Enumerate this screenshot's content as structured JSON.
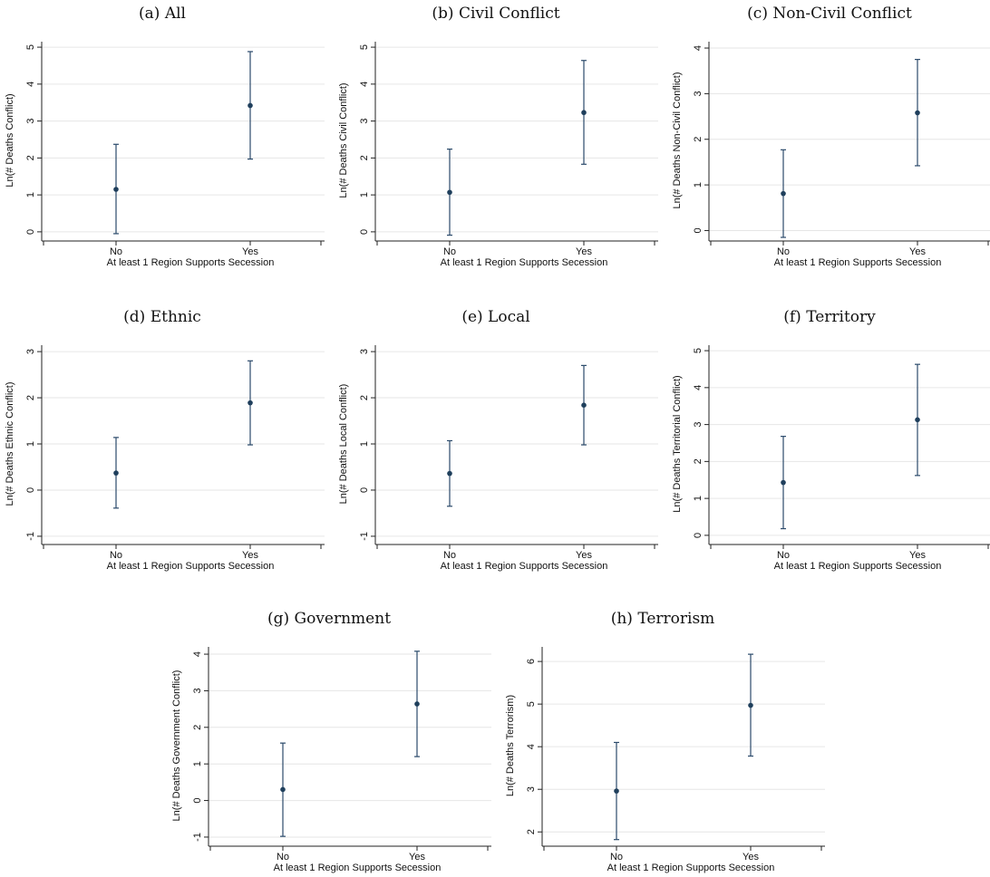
{
  "chart_data": [
    {
      "type": "scatter",
      "title": "(a) All",
      "xlabel": "At least 1 Region Supports Secession",
      "ylabel": "Ln(# Deaths Conflict)",
      "categories": [
        "No",
        "Yes"
      ],
      "estimates": [
        1.15,
        3.42
      ],
      "ci_lower": [
        -0.05,
        1.97
      ],
      "ci_upper": [
        2.37,
        4.88
      ],
      "yticks": [
        0,
        1,
        2,
        3,
        4,
        5
      ],
      "ylim": [
        -0.15,
        5.1
      ],
      "grid": true
    },
    {
      "type": "scatter",
      "title": "(b) Civil Conflict",
      "xlabel": "At least 1 Region Supports Secession",
      "ylabel": "Ln(# Deaths Civil Conflict)",
      "categories": [
        "No",
        "Yes"
      ],
      "estimates": [
        1.07,
        3.23
      ],
      "ci_lower": [
        -0.09,
        1.83
      ],
      "ci_upper": [
        2.24,
        4.64
      ],
      "yticks": [
        0,
        1,
        2,
        3,
        4,
        5
      ],
      "ylim": [
        -0.15,
        5.1
      ],
      "grid": true
    },
    {
      "type": "scatter",
      "title": "(c) Non-Civil Conflict",
      "xlabel": "At least 1 Region Supports Secession",
      "ylabel": "Ln(# Deaths Non-Civil Conflict)",
      "categories": [
        "No",
        "Yes"
      ],
      "estimates": [
        0.81,
        2.58
      ],
      "ci_lower": [
        -0.15,
        1.42
      ],
      "ci_upper": [
        1.77,
        3.75
      ],
      "yticks": [
        0,
        1,
        2,
        3,
        4
      ],
      "ylim": [
        -0.15,
        4.1
      ],
      "grid": true
    },
    {
      "type": "scatter",
      "title": "(d) Ethnic",
      "xlabel": "At least 1 Region Supports Secession",
      "ylabel": "Ln(# Deaths Ethnic Conflict)",
      "categories": [
        "No",
        "Yes"
      ],
      "estimates": [
        0.37,
        1.89
      ],
      "ci_lower": [
        -0.39,
        0.98
      ],
      "ci_upper": [
        1.14,
        2.8
      ],
      "yticks": [
        -1,
        0,
        1,
        2,
        3
      ],
      "ylim": [
        -1.1,
        3.1
      ],
      "grid": true
    },
    {
      "type": "scatter",
      "title": "(e) Local",
      "xlabel": "At least 1 Region Supports Secession",
      "ylabel": "Ln(# Deaths Local Conflict)",
      "categories": [
        "No",
        "Yes"
      ],
      "estimates": [
        0.36,
        1.84
      ],
      "ci_lower": [
        -0.35,
        0.98
      ],
      "ci_upper": [
        1.07,
        2.7
      ],
      "yticks": [
        -1,
        0,
        1,
        2,
        3
      ],
      "ylim": [
        -1.1,
        3.1
      ],
      "grid": true
    },
    {
      "type": "scatter",
      "title": "(f) Territory",
      "xlabel": "At least 1 Region Supports Secession",
      "ylabel": "Ln(# Deaths Territorial Conflict)",
      "categories": [
        "No",
        "Yes"
      ],
      "estimates": [
        1.43,
        3.13
      ],
      "ci_lower": [
        0.18,
        1.62
      ],
      "ci_upper": [
        2.68,
        4.63
      ],
      "yticks": [
        0,
        1,
        2,
        3,
        4,
        5
      ],
      "ylim": [
        -0.15,
        5.1
      ],
      "grid": true
    },
    {
      "type": "scatter",
      "title": "(g) Government",
      "xlabel": "At least 1 Region Supports Secession",
      "ylabel": "Ln(# Deaths Government Conflict)",
      "categories": [
        "No",
        "Yes"
      ],
      "estimates": [
        0.3,
        2.64
      ],
      "ci_lower": [
        -0.98,
        1.2
      ],
      "ci_upper": [
        1.57,
        4.08
      ],
      "yticks": [
        -1,
        0,
        1,
        2,
        3,
        4
      ],
      "ylim": [
        -1.15,
        4.15
      ],
      "grid": true
    },
    {
      "type": "scatter",
      "title": "(h) Terrorism",
      "xlabel": "At least 1 Region Supports Secession",
      "ylabel": "Ln(# Deaths Terrorism)",
      "categories": [
        "No",
        "Yes"
      ],
      "estimates": [
        2.96,
        4.97
      ],
      "ci_lower": [
        1.82,
        3.78
      ],
      "ci_upper": [
        4.1,
        6.17
      ],
      "yticks": [
        2,
        3,
        4,
        5,
        6
      ],
      "ylim": [
        1.75,
        6.3
      ],
      "grid": true
    }
  ]
}
